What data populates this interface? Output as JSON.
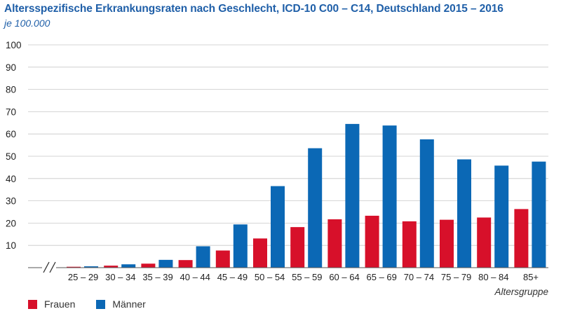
{
  "chart_data": {
    "type": "bar",
    "title": "Altersspezifische Erkrankungsraten nach Geschlecht, ICD-10 C00 – C14, Deutschland 2015 – 2016",
    "subtitle": "je 100.000",
    "xlabel": "Altersgruppe",
    "ylabel": "",
    "ylim": [
      0,
      100
    ],
    "yticks": [
      "10",
      "20",
      "30",
      "40",
      "50",
      "60",
      "70",
      "80",
      "90",
      "100"
    ],
    "grid": true,
    "legend_position": "bottom-left",
    "categories": [
      "25 – 29",
      "30 – 34",
      "35 – 39",
      "40 – 44",
      "45 – 49",
      "50 – 54",
      "55 – 59",
      "60 – 64",
      "65 – 69",
      "70 – 74",
      "75 – 79",
      "80 – 84",
      "85+"
    ],
    "series": [
      {
        "name": "Frauen",
        "color": "#d7102a",
        "values": [
          0.4,
          0.9,
          1.8,
          3.4,
          7.7,
          13.1,
          18.2,
          21.7,
          23.3,
          20.8,
          21.5,
          22.5,
          26.3
        ]
      },
      {
        "name": "Männer",
        "color": "#0b68b5",
        "values": [
          0.6,
          1.5,
          3.5,
          9.6,
          19.4,
          36.6,
          53.6,
          64.5,
          63.8,
          57.6,
          48.6,
          45.8,
          47.6
        ]
      }
    ]
  }
}
